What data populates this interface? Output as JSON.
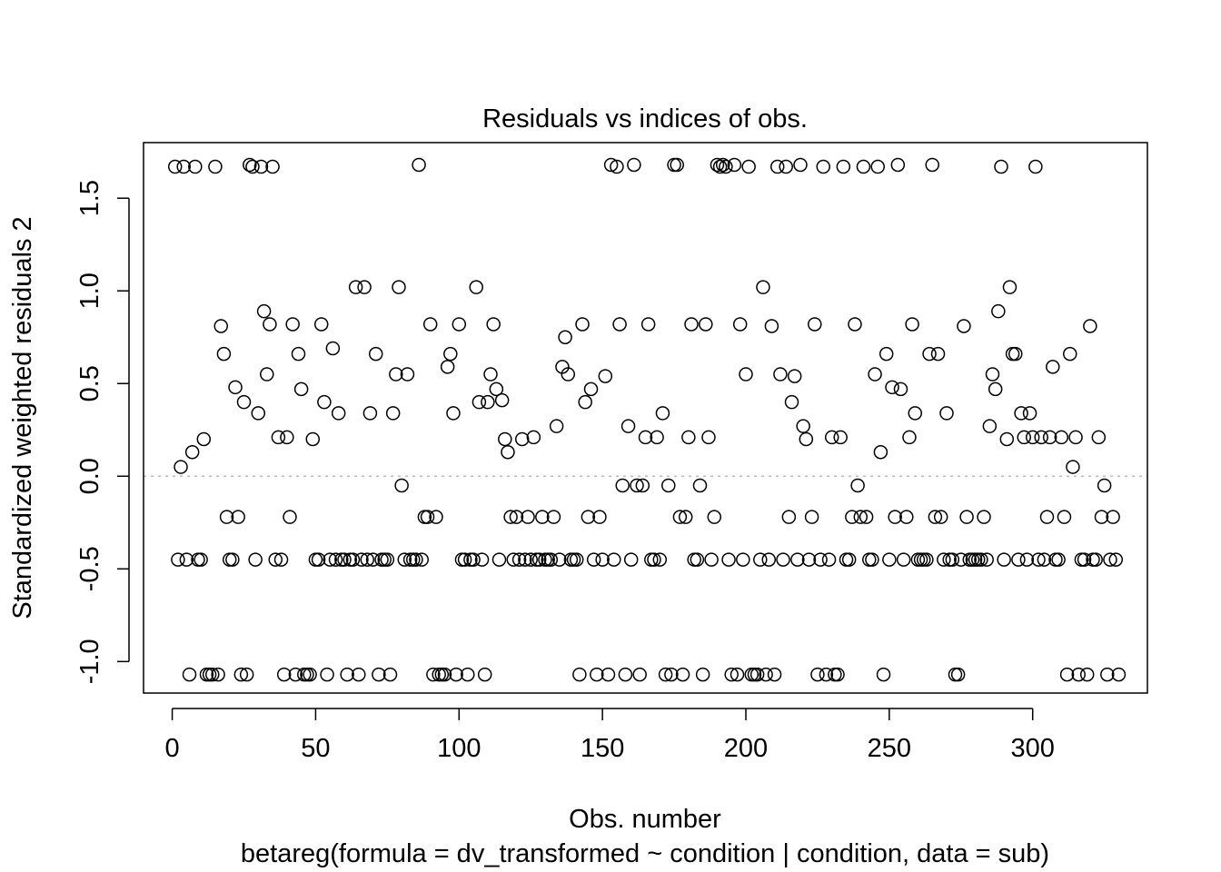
{
  "chart_data": {
    "type": "scatter",
    "title": "Residuals vs indices of obs.",
    "xlabel": "Obs. number",
    "xlabel_sub": "betareg(formula = dv_transformed ~ condition | condition, data = sub)",
    "ylabel": "Standardized weighted residuals 2",
    "xlim": [
      -10,
      340
    ],
    "ylim": [
      -1.17,
      1.8
    ],
    "xticks": [
      0,
      50,
      100,
      150,
      200,
      250,
      300
    ],
    "xtick_labels": [
      "0",
      "50",
      "100",
      "150",
      "200",
      "250",
      "300"
    ],
    "yticks": [
      -1.0,
      -0.5,
      0.0,
      0.5,
      1.0,
      1.5
    ],
    "ytick_labels": [
      "-1.0",
      "-0.5",
      "0.0",
      "0.5",
      "1.0",
      "1.5"
    ],
    "reference_line": {
      "y": 0,
      "style": "dotted",
      "color": "#bebebe"
    },
    "marker": "open-circle",
    "grid": false,
    "legend": "none",
    "points": [
      [
        1,
        1.67
      ],
      [
        2,
        -0.45
      ],
      [
        3,
        0.05
      ],
      [
        4,
        1.67
      ],
      [
        5,
        -0.45
      ],
      [
        6,
        -1.07
      ],
      [
        7,
        0.13
      ],
      [
        8,
        1.67
      ],
      [
        9,
        -0.45
      ],
      [
        10,
        -0.45
      ],
      [
        11,
        0.2
      ],
      [
        12,
        -1.07
      ],
      [
        13,
        -1.07
      ],
      [
        14,
        -1.07
      ],
      [
        15,
        1.67
      ],
      [
        16,
        -1.07
      ],
      [
        17,
        0.81
      ],
      [
        18,
        0.66
      ],
      [
        19,
        -0.22
      ],
      [
        20,
        -0.45
      ],
      [
        21,
        -0.45
      ],
      [
        22,
        0.48
      ],
      [
        23,
        -0.22
      ],
      [
        24,
        -1.07
      ],
      [
        25,
        0.4
      ],
      [
        26,
        -1.07
      ],
      [
        27,
        1.68
      ],
      [
        28,
        1.67
      ],
      [
        29,
        -0.45
      ],
      [
        30,
        0.34
      ],
      [
        31,
        1.67
      ],
      [
        32,
        0.89
      ],
      [
        33,
        0.55
      ],
      [
        34,
        0.82
      ],
      [
        35,
        1.67
      ],
      [
        36,
        -0.45
      ],
      [
        37,
        0.21
      ],
      [
        38,
        -0.45
      ],
      [
        39,
        -1.07
      ],
      [
        40,
        0.21
      ],
      [
        41,
        -0.22
      ],
      [
        42,
        0.82
      ],
      [
        43,
        -1.07
      ],
      [
        44,
        0.66
      ],
      [
        45,
        0.47
      ],
      [
        46,
        -1.07
      ],
      [
        47,
        -1.07
      ],
      [
        48,
        -1.07
      ],
      [
        49,
        0.2
      ],
      [
        50,
        -0.45
      ],
      [
        51,
        -0.45
      ],
      [
        52,
        0.82
      ],
      [
        53,
        0.4
      ],
      [
        54,
        -1.07
      ],
      [
        55,
        -0.45
      ],
      [
        56,
        0.69
      ],
      [
        57,
        -0.45
      ],
      [
        58,
        0.34
      ],
      [
        59,
        -0.45
      ],
      [
        60,
        -0.45
      ],
      [
        61,
        -1.07
      ],
      [
        62,
        -0.45
      ],
      [
        63,
        -0.45
      ],
      [
        64,
        1.02
      ],
      [
        65,
        -1.07
      ],
      [
        66,
        -0.45
      ],
      [
        67,
        1.02
      ],
      [
        68,
        -0.45
      ],
      [
        69,
        0.34
      ],
      [
        70,
        -0.45
      ],
      [
        71,
        0.66
      ],
      [
        72,
        -1.07
      ],
      [
        73,
        -0.45
      ],
      [
        74,
        -0.45
      ],
      [
        75,
        -0.45
      ],
      [
        76,
        -1.07
      ],
      [
        77,
        0.34
      ],
      [
        78,
        0.55
      ],
      [
        79,
        1.02
      ],
      [
        80,
        -0.05
      ],
      [
        81,
        -0.45
      ],
      [
        82,
        0.55
      ],
      [
        83,
        -0.45
      ],
      [
        84,
        -0.45
      ],
      [
        85,
        -0.45
      ],
      [
        86,
        1.68
      ],
      [
        87,
        -0.45
      ],
      [
        88,
        -0.22
      ],
      [
        89,
        -0.22
      ],
      [
        90,
        0.82
      ],
      [
        91,
        -1.07
      ],
      [
        92,
        -0.22
      ],
      [
        93,
        -1.07
      ],
      [
        94,
        -1.07
      ],
      [
        95,
        -1.07
      ],
      [
        96,
        0.59
      ],
      [
        97,
        0.66
      ],
      [
        98,
        0.34
      ],
      [
        99,
        -1.07
      ],
      [
        100,
        0.82
      ],
      [
        101,
        -0.45
      ],
      [
        102,
        -0.45
      ],
      [
        103,
        -1.07
      ],
      [
        104,
        -0.45
      ],
      [
        105,
        -0.45
      ],
      [
        106,
        1.02
      ],
      [
        107,
        0.4
      ],
      [
        108,
        -0.45
      ],
      [
        109,
        -1.07
      ],
      [
        110,
        0.4
      ],
      [
        111,
        0.55
      ],
      [
        112,
        0.82
      ],
      [
        113,
        0.47
      ],
      [
        114,
        -0.45
      ],
      [
        115,
        0.41
      ],
      [
        116,
        0.2
      ],
      [
        117,
        0.13
      ],
      [
        118,
        -0.22
      ],
      [
        119,
        -0.45
      ],
      [
        120,
        -0.22
      ],
      [
        121,
        -0.45
      ],
      [
        122,
        0.2
      ],
      [
        123,
        -0.45
      ],
      [
        124,
        -0.22
      ],
      [
        125,
        -0.45
      ],
      [
        126,
        0.21
      ],
      [
        127,
        -0.45
      ],
      [
        128,
        -0.45
      ],
      [
        129,
        -0.22
      ],
      [
        130,
        -0.45
      ],
      [
        131,
        -0.45
      ],
      [
        132,
        -0.45
      ],
      [
        133,
        -0.22
      ],
      [
        134,
        0.27
      ],
      [
        135,
        -0.45
      ],
      [
        136,
        0.59
      ],
      [
        137,
        0.75
      ],
      [
        138,
        0.55
      ],
      [
        139,
        -0.45
      ],
      [
        140,
        -0.45
      ],
      [
        141,
        -0.45
      ],
      [
        142,
        -1.07
      ],
      [
        143,
        0.82
      ],
      [
        144,
        0.4
      ],
      [
        145,
        -0.22
      ],
      [
        146,
        0.47
      ],
      [
        147,
        -0.45
      ],
      [
        148,
        -1.07
      ],
      [
        149,
        -0.22
      ],
      [
        150,
        -0.45
      ],
      [
        151,
        0.54
      ],
      [
        152,
        -1.07
      ],
      [
        153,
        1.68
      ],
      [
        154,
        -0.45
      ],
      [
        155,
        1.67
      ],
      [
        156,
        0.82
      ],
      [
        157,
        -0.05
      ],
      [
        158,
        -1.07
      ],
      [
        159,
        0.27
      ],
      [
        160,
        -0.45
      ],
      [
        161,
        1.68
      ],
      [
        162,
        -0.05
      ],
      [
        163,
        -1.07
      ],
      [
        164,
        -0.05
      ],
      [
        165,
        0.21
      ],
      [
        166,
        0.82
      ],
      [
        167,
        -0.45
      ],
      [
        168,
        -0.45
      ],
      [
        169,
        0.21
      ],
      [
        170,
        -0.45
      ],
      [
        171,
        0.34
      ],
      [
        172,
        -1.07
      ],
      [
        173,
        -0.05
      ],
      [
        174,
        -1.07
      ],
      [
        175,
        1.68
      ],
      [
        176,
        1.68
      ],
      [
        177,
        -0.22
      ],
      [
        178,
        -1.07
      ],
      [
        179,
        -0.22
      ],
      [
        180,
        0.21
      ],
      [
        181,
        0.82
      ],
      [
        182,
        -0.45
      ],
      [
        183,
        -0.45
      ],
      [
        184,
        -0.05
      ],
      [
        185,
        -1.07
      ],
      [
        186,
        0.82
      ],
      [
        187,
        0.21
      ],
      [
        188,
        -0.45
      ],
      [
        189,
        -0.22
      ],
      [
        190,
        1.68
      ],
      [
        191,
        1.67
      ],
      [
        192,
        1.68
      ],
      [
        193,
        1.67
      ],
      [
        194,
        -0.45
      ],
      [
        195,
        -1.07
      ],
      [
        196,
        1.68
      ],
      [
        197,
        -1.07
      ],
      [
        198,
        0.82
      ],
      [
        199,
        -0.45
      ],
      [
        200,
        0.55
      ],
      [
        201,
        1.67
      ],
      [
        202,
        -1.07
      ],
      [
        203,
        -1.07
      ],
      [
        204,
        -1.07
      ],
      [
        205,
        -0.45
      ],
      [
        206,
        1.02
      ],
      [
        207,
        -1.07
      ],
      [
        208,
        -0.45
      ],
      [
        209,
        0.81
      ],
      [
        210,
        -1.07
      ],
      [
        211,
        1.67
      ],
      [
        212,
        0.55
      ],
      [
        213,
        -0.45
      ],
      [
        214,
        1.67
      ],
      [
        215,
        -0.22
      ],
      [
        216,
        0.4
      ],
      [
        217,
        0.54
      ],
      [
        218,
        -0.45
      ],
      [
        219,
        1.68
      ],
      [
        220,
        0.27
      ],
      [
        221,
        0.2
      ],
      [
        222,
        -0.45
      ],
      [
        223,
        -0.22
      ],
      [
        224,
        0.82
      ],
      [
        225,
        -1.07
      ],
      [
        226,
        -0.45
      ],
      [
        227,
        1.67
      ],
      [
        228,
        -1.07
      ],
      [
        229,
        -0.45
      ],
      [
        230,
        0.21
      ],
      [
        231,
        -1.07
      ],
      [
        232,
        -1.07
      ],
      [
        233,
        0.21
      ],
      [
        234,
        1.67
      ],
      [
        235,
        -0.45
      ],
      [
        236,
        -0.45
      ],
      [
        237,
        -0.22
      ],
      [
        238,
        0.82
      ],
      [
        239,
        -0.05
      ],
      [
        240,
        -0.22
      ],
      [
        241,
        1.67
      ],
      [
        242,
        -0.22
      ],
      [
        243,
        -0.45
      ],
      [
        244,
        -0.45
      ],
      [
        245,
        0.55
      ],
      [
        246,
        1.67
      ],
      [
        247,
        0.13
      ],
      [
        248,
        -1.07
      ],
      [
        249,
        0.66
      ],
      [
        250,
        -0.45
      ],
      [
        251,
        0.48
      ],
      [
        252,
        -0.22
      ],
      [
        253,
        1.68
      ],
      [
        254,
        0.47
      ],
      [
        255,
        -0.45
      ],
      [
        256,
        -0.22
      ],
      [
        257,
        0.21
      ],
      [
        258,
        0.82
      ],
      [
        259,
        0.34
      ],
      [
        260,
        -0.45
      ],
      [
        261,
        -0.45
      ],
      [
        262,
        -0.45
      ],
      [
        263,
        -0.45
      ],
      [
        264,
        0.66
      ],
      [
        265,
        1.68
      ],
      [
        266,
        -0.22
      ],
      [
        267,
        0.66
      ],
      [
        268,
        -0.22
      ],
      [
        269,
        -0.45
      ],
      [
        270,
        0.34
      ],
      [
        271,
        -0.45
      ],
      [
        272,
        -0.45
      ],
      [
        273,
        -1.07
      ],
      [
        274,
        -1.07
      ],
      [
        275,
        -0.45
      ],
      [
        276,
        0.81
      ],
      [
        277,
        -0.22
      ],
      [
        278,
        -0.45
      ],
      [
        279,
        -0.45
      ],
      [
        280,
        -0.45
      ],
      [
        281,
        -0.45
      ],
      [
        282,
        -0.45
      ],
      [
        283,
        -0.22
      ],
      [
        284,
        -0.45
      ],
      [
        285,
        0.27
      ],
      [
        286,
        0.55
      ],
      [
        287,
        0.47
      ],
      [
        288,
        0.89
      ],
      [
        289,
        1.67
      ],
      [
        290,
        -0.45
      ],
      [
        291,
        0.2
      ],
      [
        292,
        1.02
      ],
      [
        293,
        0.66
      ],
      [
        294,
        0.66
      ],
      [
        295,
        -0.45
      ],
      [
        296,
        0.34
      ],
      [
        297,
        0.21
      ],
      [
        298,
        -0.45
      ],
      [
        299,
        0.34
      ],
      [
        300,
        0.21
      ],
      [
        301,
        1.67
      ],
      [
        302,
        -0.45
      ],
      [
        303,
        0.21
      ],
      [
        304,
        -0.45
      ],
      [
        305,
        -0.22
      ],
      [
        306,
        0.21
      ],
      [
        307,
        0.59
      ],
      [
        308,
        -0.45
      ],
      [
        309,
        -0.45
      ],
      [
        310,
        0.21
      ],
      [
        311,
        -0.22
      ],
      [
        312,
        -1.07
      ],
      [
        313,
        0.66
      ],
      [
        314,
        0.05
      ],
      [
        315,
        0.21
      ],
      [
        316,
        -1.07
      ],
      [
        317,
        -0.45
      ],
      [
        318,
        -0.45
      ],
      [
        319,
        -1.07
      ],
      [
        320,
        0.81
      ],
      [
        321,
        -0.45
      ],
      [
        322,
        -0.45
      ],
      [
        323,
        0.21
      ],
      [
        324,
        -0.22
      ],
      [
        325,
        -0.05
      ],
      [
        326,
        -1.07
      ],
      [
        327,
        -0.45
      ],
      [
        328,
        -0.22
      ],
      [
        329,
        -0.45
      ],
      [
        330,
        -1.07
      ]
    ]
  }
}
